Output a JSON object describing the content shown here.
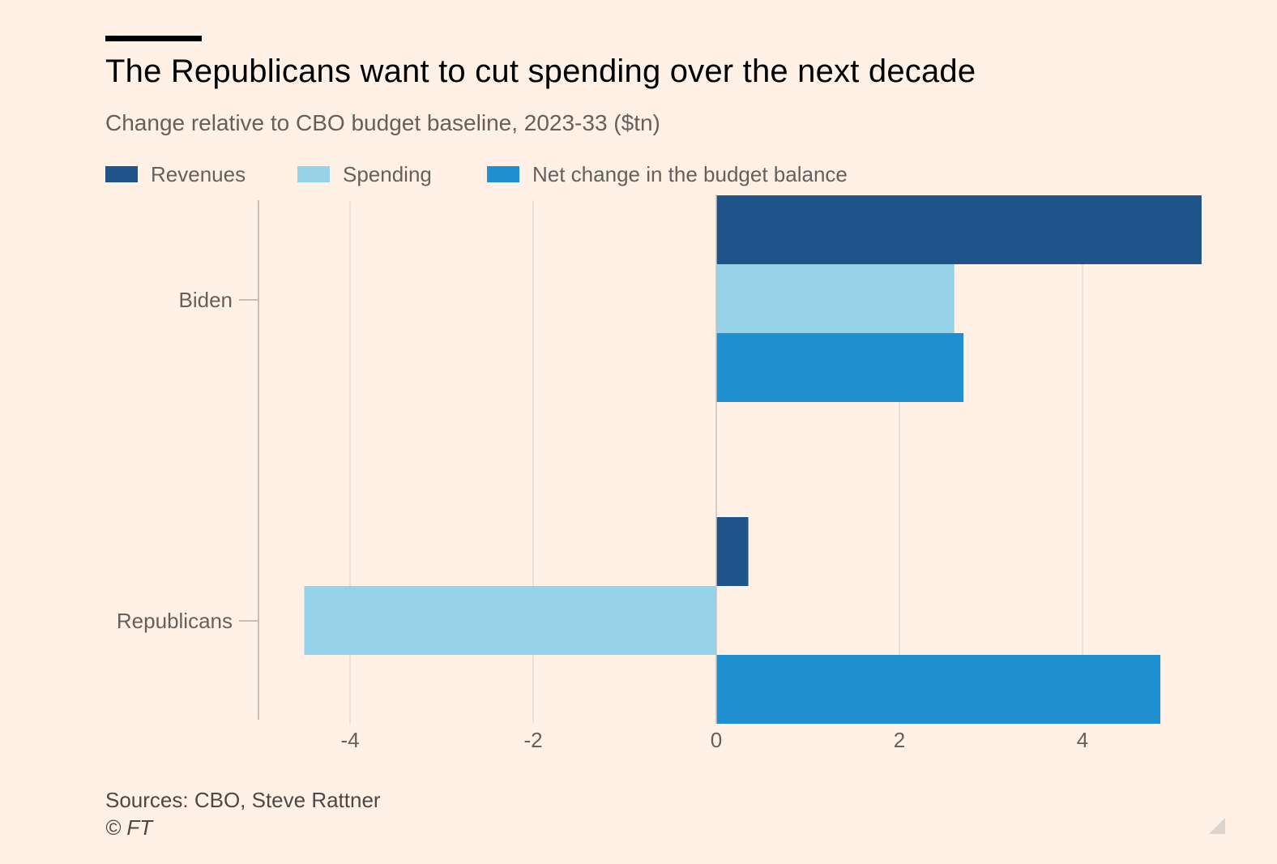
{
  "header": {
    "title": "The Republicans want to cut spending over the next decade",
    "subtitle": "Change relative to CBO budget baseline, 2023-33 ($tn)"
  },
  "legend": {
    "items": [
      {
        "label": "Revenues",
        "color": "#1F548A"
      },
      {
        "label": "Spending",
        "color": "#96D3E8"
      },
      {
        "label": "Net change in the budget balance",
        "color": "#1E8FCF"
      }
    ]
  },
  "chart_data": {
    "type": "bar",
    "orientation": "horizontal",
    "title": "The Republicans want to cut spending over the next decade",
    "subtitle": "Change relative to CBO budget baseline, 2023-33 ($tn)",
    "categories": [
      "Biden",
      "Republicans"
    ],
    "series": [
      {
        "name": "Revenues",
        "color": "#1F548A",
        "values": [
          5.3,
          0.35
        ]
      },
      {
        "name": "Spending",
        "color": "#96D3E8",
        "values": [
          2.6,
          -4.5
        ]
      },
      {
        "name": "Net change in the budget balance",
        "color": "#1E8FCF",
        "values": [
          2.7,
          4.85
        ]
      }
    ],
    "x_ticks": [
      -4,
      -2,
      0,
      2,
      4
    ],
    "x_tick_labels": [
      "-4",
      "-2",
      "0",
      "2",
      "4"
    ],
    "xlim": [
      -5,
      5.5
    ],
    "xlabel": "",
    "ylabel": "",
    "grid": "vertical",
    "legend_position": "top-left"
  },
  "footer": {
    "source": "Sources: CBO, Steve Rattner",
    "credit": "© FT"
  }
}
